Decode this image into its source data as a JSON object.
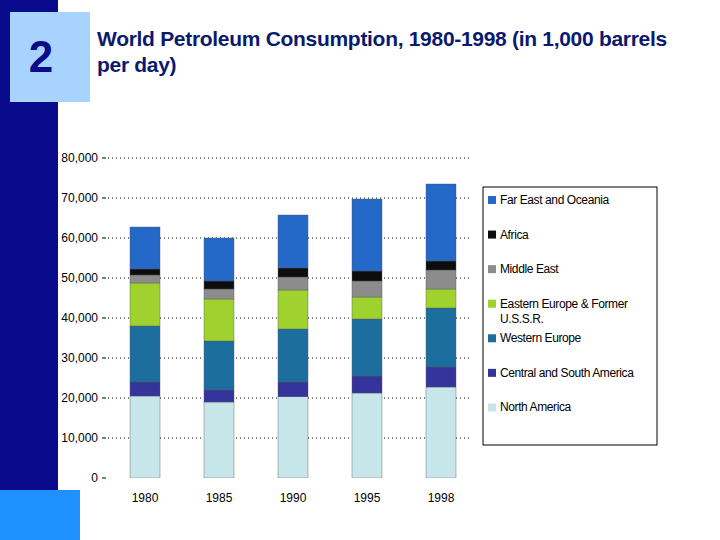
{
  "chart_data": {
    "type": "bar",
    "title": "World Petroleum Consumption, 1980-1998 (in 1,000 barrels per day)",
    "annotations": [
      "2"
    ],
    "categories": [
      "1980",
      "1985",
      "1990",
      "1995",
      "1998"
    ],
    "stacked": true,
    "grid": true,
    "legend": "right",
    "ylim": [
      0,
      80000
    ],
    "yticks": [
      0,
      {
        "value": 10000,
        "label": "10,000"
      },
      {
        "value": 20000,
        "label": "20,000"
      },
      {
        "value": 30000,
        "label": "30,000"
      },
      {
        "value": 40000,
        "label": "40,000"
      },
      {
        "value": 50000,
        "label": "50,000"
      },
      {
        "value": 60000,
        "label": "60,000"
      },
      {
        "value": 70000,
        "label": "70,000"
      },
      {
        "value": 80000,
        "label": "80,000"
      }
    ],
    "series": [
      {
        "name": "North America",
        "color": "#c6e6ea",
        "values": [
          20500,
          19000,
          20300,
          21250,
          22750
        ]
      },
      {
        "name": "Central and South America",
        "color": "#34349c",
        "values": [
          3500,
          3000,
          3700,
          4250,
          5000
        ]
      },
      {
        "name": "Western Europe",
        "color": "#1c6e9e",
        "values": [
          14000,
          12250,
          13250,
          14250,
          14750
        ]
      },
      {
        "name": "Eastern Europe & Former U.S.S.R.",
        "color": "#9fd12f",
        "values": [
          10750,
          10500,
          9750,
          5500,
          4750
        ]
      },
      {
        "name": "Middle East",
        "color": "#8c8c8c",
        "values": [
          2000,
          2500,
          3250,
          4000,
          4750
        ]
      },
      {
        "name": "Africa",
        "color": "#0d0d0d",
        "values": [
          1500,
          2000,
          2250,
          2500,
          2250
        ]
      },
      {
        "name": "Far East and Oceania",
        "color": "#2468c8",
        "values": [
          10500,
          10750,
          13250,
          18000,
          19250
        ]
      }
    ]
  }
}
